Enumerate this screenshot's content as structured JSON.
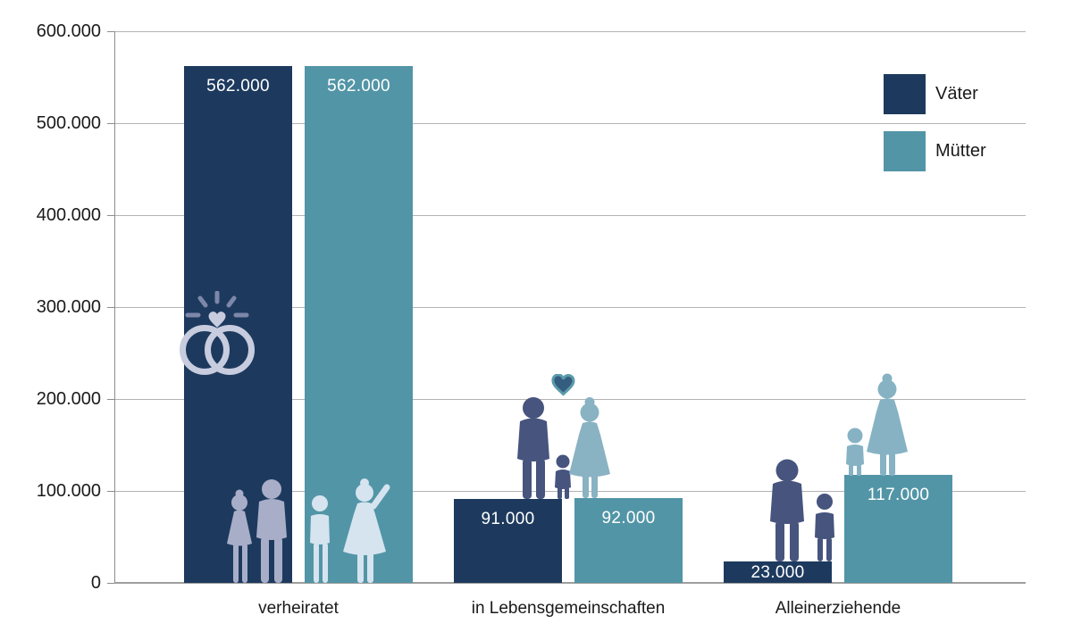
{
  "chart_data": {
    "type": "bar",
    "title": "",
    "categories": [
      "verheiratet",
      "in Lebensgemeinschaften",
      "Alleinerziehende"
    ],
    "series": [
      {
        "name": "Väter",
        "color": "#1d3a5e",
        "values": [
          562000,
          91000,
          23000
        ],
        "labels": [
          "562.000",
          "91.000",
          "23.000"
        ]
      },
      {
        "name": "Mütter",
        "color": "#5295a6",
        "values": [
          562000,
          92000,
          117000
        ],
        "labels": [
          "562.000",
          "92.000",
          "117.000"
        ]
      }
    ],
    "ylim": [
      0,
      600000
    ],
    "yticks": [
      "600.000",
      "500.000",
      "400.000",
      "300.000",
      "200.000",
      "100.000",
      "0"
    ],
    "xlabel": "",
    "ylabel": "",
    "grid": true,
    "legend_position": "top-right",
    "value_label_color": "#ffffff"
  },
  "icons": [
    {
      "name": "wedding-rings-icon"
    },
    {
      "name": "parent-with-daughter-icon"
    },
    {
      "name": "mother-waving-with-son-icon"
    },
    {
      "name": "couple-with-child-icon"
    },
    {
      "name": "heart-icon"
    },
    {
      "name": "single-father-with-child-icon"
    },
    {
      "name": "single-mother-with-child-icon"
    }
  ]
}
